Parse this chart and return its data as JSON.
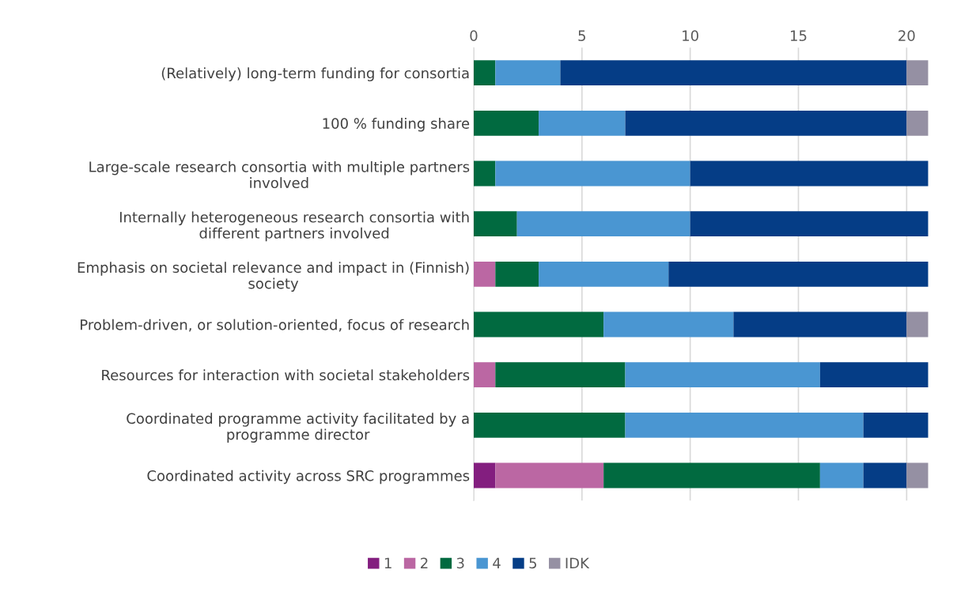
{
  "chart_data": {
    "type": "bar",
    "orientation": "horizontal",
    "stacked": true,
    "categories": [
      "(Relatively) long-term funding for consortia",
      "100 % funding share",
      "Large-scale research consortia with multiple partners\ninvolved",
      "Internally heterogeneous research consortia with\ndifferent partners involved",
      "Emphasis on societal relevance and impact in (Finnish)\nsociety",
      "Problem-driven, or solution-oriented, focus of research",
      "Resources for interaction with societal stakeholders",
      "Coordinated programme activity facilitated by a\nprogramme director",
      "Coordinated activity across SRC programmes"
    ],
    "series": [
      {
        "name": "1",
        "color": "#831e7f",
        "values": [
          0,
          0,
          0,
          0,
          0,
          0,
          0,
          0,
          1
        ]
      },
      {
        "name": "2",
        "color": "#bb67a3",
        "values": [
          0,
          0,
          0,
          0,
          1,
          0,
          1,
          0,
          5
        ]
      },
      {
        "name": "3",
        "color": "#016a40",
        "values": [
          1,
          3,
          1,
          2,
          2,
          6,
          6,
          7,
          10
        ]
      },
      {
        "name": "4",
        "color": "#4a96d2",
        "values": [
          3,
          4,
          9,
          8,
          6,
          6,
          9,
          11,
          2
        ]
      },
      {
        "name": "5",
        "color": "#053d86",
        "values": [
          16,
          13,
          11,
          11,
          12,
          8,
          5,
          3,
          2
        ]
      },
      {
        "name": "IDK",
        "color": "#9590a3",
        "values": [
          1,
          1,
          0,
          0,
          0,
          1,
          0,
          0,
          1
        ]
      }
    ],
    "xlim": [
      0,
      21
    ],
    "xticks": [
      0,
      5,
      10,
      15,
      20
    ],
    "grid": "x",
    "legend": "bottom"
  }
}
